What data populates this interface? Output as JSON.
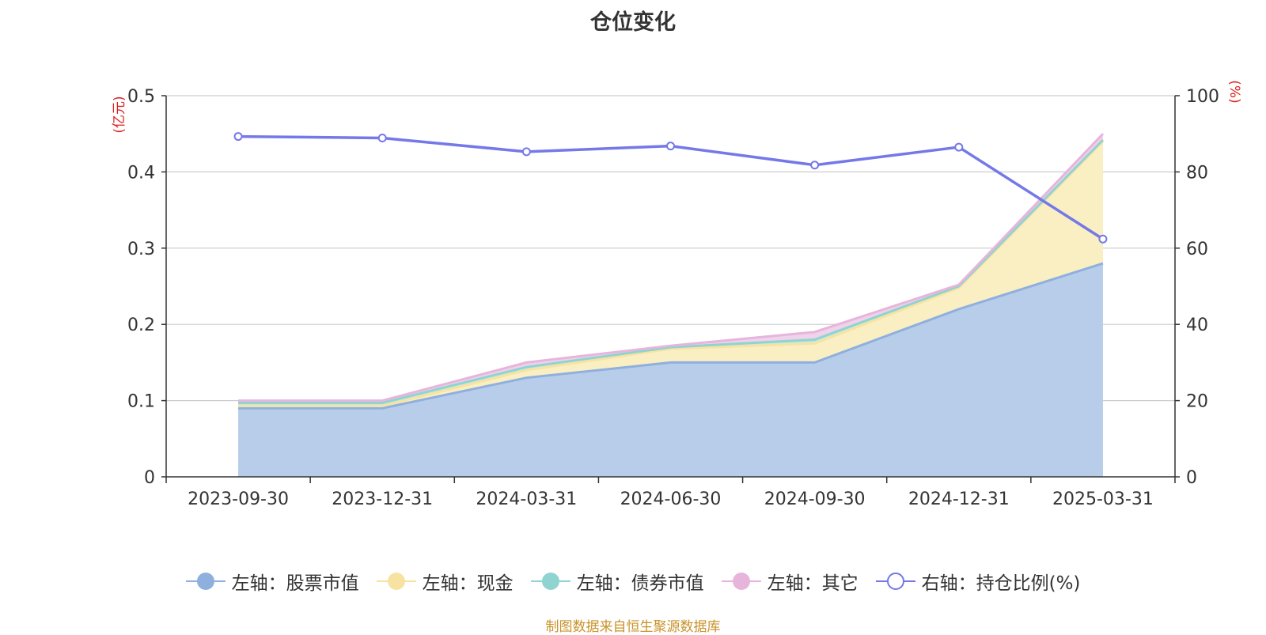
{
  "chart_data": {
    "type": "area",
    "title": "仓位变化",
    "categories": [
      "2023-09-30",
      "2023-12-31",
      "2024-03-31",
      "2024-06-30",
      "2024-09-30",
      "2024-12-31",
      "2025-03-31"
    ],
    "left_axis": {
      "unit": "(亿元)",
      "ylim": [
        0,
        0.5
      ],
      "ticks": [
        "0",
        "0.1",
        "0.2",
        "0.3",
        "0.4",
        "0.5"
      ]
    },
    "right_axis": {
      "unit": "(%)",
      "ylim": [
        0,
        100
      ],
      "ticks": [
        "0",
        "20",
        "40",
        "60",
        "80",
        "100"
      ]
    },
    "stacked_series": [
      {
        "name": "左轴：股票市值",
        "values": [
          0.09,
          0.09,
          0.13,
          0.15,
          0.15,
          0.22,
          0.28
        ],
        "color": "#8fb0de",
        "fill": "#b8cdea"
      },
      {
        "name": "左轴：现金",
        "values": [
          0.003,
          0.003,
          0.01,
          0.018,
          0.025,
          0.028,
          0.16
        ],
        "color": "#f7e3a1",
        "fill": "#faeec3"
      },
      {
        "name": "左轴：债券市值",
        "values": [
          0.004,
          0.004,
          0.004,
          0.002,
          0.005,
          0.002,
          0.002
        ],
        "color": "#8fd4d0",
        "fill": "#c2e8e6"
      },
      {
        "name": "左轴：其它",
        "values": [
          0.003,
          0.003,
          0.006,
          0.002,
          0.01,
          0.002,
          0.008
        ],
        "color": "#e7b5dc",
        "fill": "#f0d2ea"
      }
    ],
    "line_series": {
      "name": "右轴：持仓比例(%)",
      "values": [
        89.3,
        88.9,
        85.3,
        86.8,
        81.8,
        86.5,
        62.4
      ],
      "color": "#7478e8"
    },
    "footer": "制图数据来自恒生聚源数据库"
  }
}
